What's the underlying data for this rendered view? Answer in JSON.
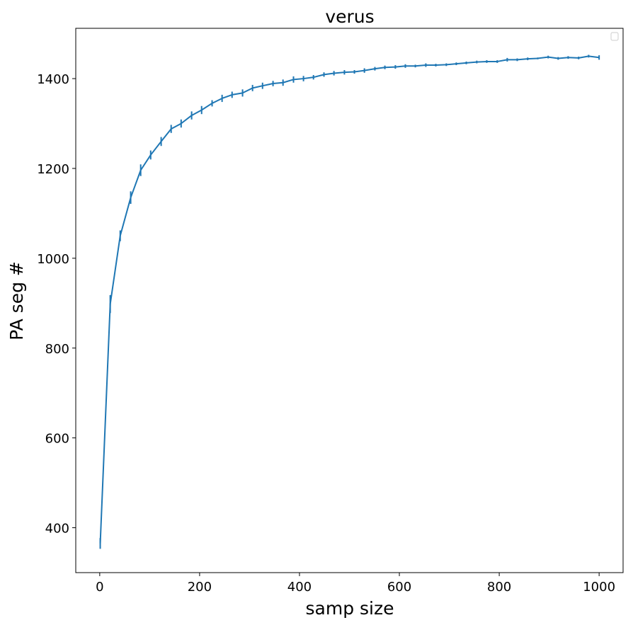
{
  "chart_data": {
    "type": "line",
    "title": "verus",
    "xlabel": "samp size",
    "ylabel": "PA seg #",
    "xlim": [
      -48,
      1048
    ],
    "ylim": [
      300,
      1512
    ],
    "xticks": [
      0,
      200,
      400,
      600,
      800,
      1000
    ],
    "yticks": [
      400,
      600,
      800,
      1000,
      1200,
      1400
    ],
    "legend": "top-right (empty)",
    "series": [
      {
        "name": "",
        "color": "#1f77b4",
        "x": [
          1,
          21,
          41,
          62,
          82,
          102,
          123,
          143,
          163,
          184,
          204,
          225,
          245,
          265,
          286,
          306,
          326,
          347,
          367,
          388,
          408,
          428,
          449,
          469,
          490,
          510,
          530,
          551,
          571,
          592,
          612,
          632,
          653,
          673,
          694,
          714,
          734,
          755,
          775,
          796,
          816,
          836,
          857,
          877,
          898,
          918,
          938,
          959,
          979,
          1000
        ],
        "y": [
          365,
          898,
          1050,
          1135,
          1196,
          1230,
          1260,
          1288,
          1300,
          1318,
          1330,
          1345,
          1356,
          1364,
          1368,
          1379,
          1384,
          1389,
          1391,
          1398,
          1400,
          1403,
          1409,
          1412,
          1414,
          1415,
          1418,
          1422,
          1425,
          1426,
          1428,
          1428,
          1430,
          1430,
          1431,
          1433,
          1435,
          1437,
          1438,
          1438,
          1442,
          1442,
          1444,
          1445,
          1448,
          1445,
          1447,
          1446,
          1450,
          1447
        ],
        "err": [
          12,
          20,
          12,
          14,
          13,
          10,
          10,
          9,
          9,
          9,
          9,
          7,
          8,
          7,
          8,
          7,
          7,
          6,
          7,
          7,
          6,
          5,
          5,
          5,
          5,
          4,
          5,
          4,
          4,
          4,
          4,
          3,
          4,
          3,
          3,
          3,
          3,
          3,
          3,
          3,
          4,
          3,
          3,
          2,
          3,
          3,
          3,
          3,
          3,
          5
        ]
      }
    ]
  }
}
